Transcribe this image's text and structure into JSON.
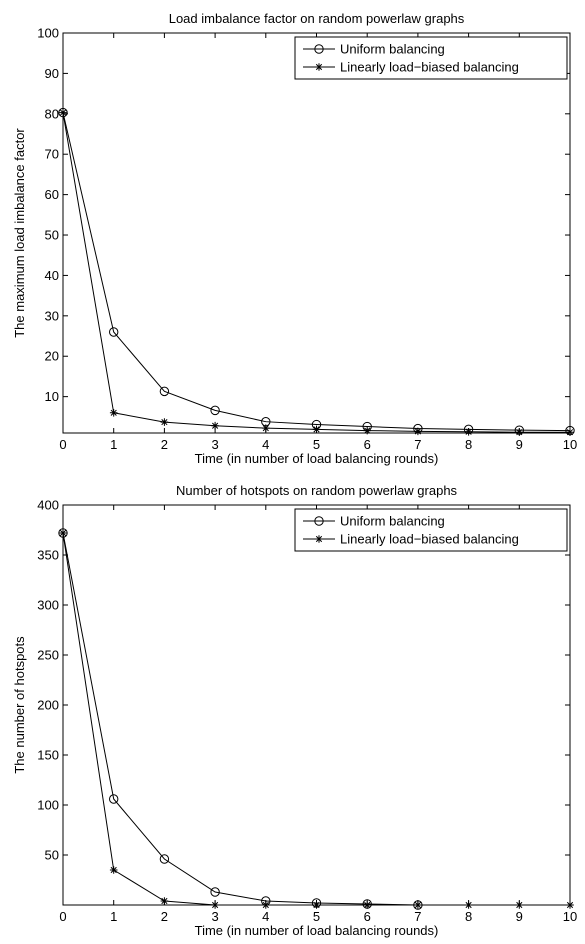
{
  "chart_data": [
    {
      "type": "line",
      "title": "Load imbalance factor on random powerlaw graphs",
      "xlabel": "Time (in number of load balancing rounds)",
      "ylabel": "The maximum load imbalance factor",
      "xlim": [
        0,
        10
      ],
      "ylim": [
        1,
        100
      ],
      "x_ticks": [
        0,
        1,
        2,
        3,
        4,
        5,
        6,
        7,
        8,
        9,
        10
      ],
      "y_ticks": [
        10,
        20,
        30,
        40,
        50,
        60,
        70,
        80,
        90,
        100
      ],
      "grid": false,
      "legend_position": "top-right",
      "series": [
        {
          "name": "Uniform balancing",
          "marker": "circle",
          "color": "#000000",
          "x": [
            0,
            1,
            2,
            3,
            4,
            5,
            6,
            7,
            8,
            9,
            10
          ],
          "values": [
            80.3,
            26,
            11.3,
            6.6,
            3.8,
            3.1,
            2.6,
            2.1,
            1.9,
            1.7,
            1.6
          ]
        },
        {
          "name": "Linearly load−biased balancing",
          "marker": "asterisk",
          "color": "#000000",
          "x": [
            0,
            1,
            2,
            3,
            4,
            5,
            6,
            7,
            8,
            9,
            10
          ],
          "values": [
            80.3,
            6,
            3.7,
            2.8,
            2.2,
            1.9,
            1.6,
            1.4,
            1.3,
            1.2,
            1.2
          ]
        }
      ]
    },
    {
      "type": "line",
      "title": "Number of hotspots on random powerlaw graphs",
      "xlabel": "Time (in number of load balancing rounds)",
      "ylabel": "The number of hotspots",
      "xlim": [
        0,
        10
      ],
      "ylim": [
        0,
        400
      ],
      "x_ticks": [
        0,
        1,
        2,
        3,
        4,
        5,
        6,
        7,
        8,
        9,
        10
      ],
      "y_ticks": [
        50,
        100,
        150,
        200,
        250,
        300,
        350,
        400
      ],
      "grid": false,
      "legend_position": "top-right",
      "series": [
        {
          "name": "Uniform balancing",
          "marker": "circle",
          "color": "#000000",
          "x": [
            0,
            1,
            2,
            3,
            4,
            5,
            6,
            7
          ],
          "values": [
            372,
            106,
            46,
            13,
            4,
            2,
            1,
            0
          ]
        },
        {
          "name": "Linearly load−biased balancing",
          "marker": "asterisk",
          "color": "#000000",
          "x": [
            0,
            1,
            2,
            3,
            4,
            5,
            6,
            7,
            8,
            9,
            10
          ],
          "values": [
            372,
            35,
            4,
            0,
            0,
            0,
            0,
            0,
            0,
            0,
            0
          ]
        }
      ]
    }
  ]
}
